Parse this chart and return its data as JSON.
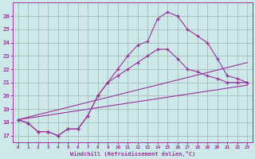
{
  "background_color": "#cce8e8",
  "line_color": "#993399",
  "grid_color": "#aabbbb",
  "xlabel": "Windchill (Refroidissement éolien,°C)",
  "xlim": [
    -0.5,
    23.5
  ],
  "ylim": [
    16.5,
    27.0
  ],
  "yticks": [
    17,
    18,
    19,
    20,
    21,
    22,
    23,
    24,
    25,
    26
  ],
  "xticks": [
    0,
    1,
    2,
    3,
    4,
    5,
    6,
    7,
    8,
    9,
    10,
    11,
    12,
    13,
    14,
    15,
    16,
    17,
    18,
    19,
    20,
    21,
    22,
    23
  ],
  "series1_x": [
    0,
    1,
    2,
    3,
    4,
    5,
    6,
    7,
    8,
    9,
    10,
    11,
    12,
    13,
    14,
    15,
    16,
    17,
    18,
    19,
    20,
    21,
    22,
    23
  ],
  "series1_y": [
    18.2,
    17.95,
    17.3,
    17.3,
    17.0,
    17.5,
    17.5,
    18.5,
    20.0,
    21.0,
    22.0,
    23.0,
    23.8,
    24.1,
    25.8,
    26.3,
    26.0,
    25.0,
    24.5,
    24.0,
    22.8,
    21.5,
    21.3,
    21.0
  ],
  "series2_x": [
    0,
    1,
    2,
    3,
    4,
    5,
    6,
    7,
    8,
    9,
    10,
    11,
    12,
    13,
    14,
    15,
    16,
    17,
    18,
    19,
    20,
    21,
    22,
    23
  ],
  "series2_y": [
    18.2,
    17.95,
    17.3,
    17.3,
    17.0,
    17.5,
    17.5,
    18.5,
    20.0,
    21.0,
    21.5,
    22.0,
    22.5,
    23.0,
    23.5,
    23.5,
    22.8,
    22.0,
    21.8,
    21.5,
    21.3,
    21.0,
    21.0,
    21.0
  ],
  "line3_x": [
    0,
    23
  ],
  "line3_y": [
    18.2,
    22.5
  ],
  "line4_x": [
    0,
    23
  ],
  "line4_y": [
    18.2,
    20.8
  ]
}
